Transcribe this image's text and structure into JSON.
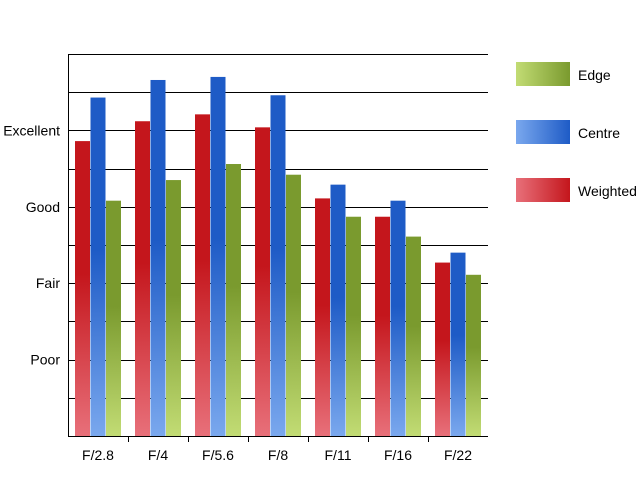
{
  "chart_data": {
    "type": "bar",
    "categories": [
      "F/2.8",
      "F/4",
      "F/5.6",
      "F/8",
      "F/11",
      "F/16",
      "F/22"
    ],
    "y_tick_labels": [
      {
        "label": "Poor",
        "value": 1
      },
      {
        "label": "Fair",
        "value": 2
      },
      {
        "label": "Good",
        "value": 3
      },
      {
        "label": "Excellent",
        "value": 4
      }
    ],
    "ylim": [
      0,
      5
    ],
    "grid": true,
    "legend_position": "right",
    "series": [
      {
        "name": "Weighted",
        "color": "#c4161c",
        "color_light": "#e8707a",
        "values": [
          3.86,
          4.12,
          4.21,
          4.04,
          3.11,
          2.87,
          2.27
        ]
      },
      {
        "name": "Centre",
        "color": "#1e5bc6",
        "color_light": "#7aa8ee",
        "values": [
          4.43,
          4.66,
          4.7,
          4.46,
          3.29,
          3.08,
          2.4
        ]
      },
      {
        "name": "Edge",
        "color": "#7a9a2e",
        "color_light": "#c2dc74",
        "values": [
          3.08,
          3.35,
          3.56,
          3.42,
          2.87,
          2.61,
          2.11
        ]
      }
    ],
    "legend_order": [
      "Edge",
      "Centre",
      "Weighted"
    ]
  }
}
